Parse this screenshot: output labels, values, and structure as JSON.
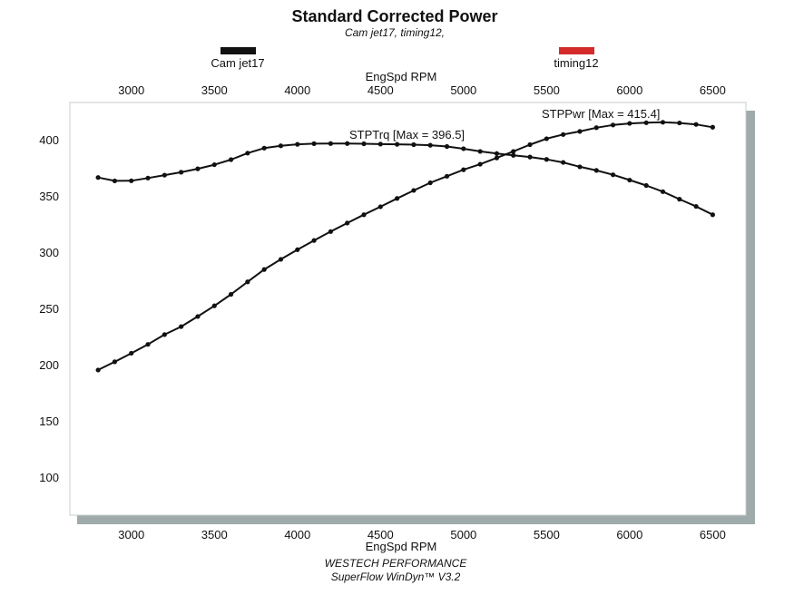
{
  "chart_data": {
    "type": "line",
    "title": "Standard Corrected Power",
    "subtitle": "Cam jet17, timing12,",
    "legend": [
      {
        "label": "Cam jet17",
        "color": "#111111"
      },
      {
        "label": "timing12",
        "color": "#d42a2a"
      }
    ],
    "xlabel": "EngSpd RPM",
    "ylabel": "",
    "xlim": [
      2630,
      6700
    ],
    "ylim": [
      66,
      433
    ],
    "x_ticks": [
      3000,
      3500,
      4000,
      4500,
      5000,
      5500,
      6000,
      6500
    ],
    "y_ticks": [
      100,
      150,
      200,
      250,
      300,
      350,
      400
    ],
    "grid": false,
    "x": [
      2800,
      2900,
      3000,
      3100,
      3200,
      3300,
      3400,
      3500,
      3600,
      3700,
      3800,
      3900,
      4000,
      4100,
      4200,
      4300,
      4400,
      4500,
      4600,
      4700,
      4800,
      4900,
      5000,
      5100,
      5200,
      5300,
      5400,
      5500,
      5600,
      5700,
      5800,
      5900,
      6000,
      6100,
      6200,
      6300,
      6400,
      6500
    ],
    "series": [
      {
        "name": "STPTrq",
        "annotation": "STPTrq [Max = 396.5]",
        "values": [
          366.3,
          363.3,
          363.4,
          365.8,
          368.4,
          371.0,
          374.0,
          377.7,
          382.2,
          388.0,
          392.4,
          394.5,
          395.8,
          396.4,
          396.5,
          396.5,
          396.3,
          396.0,
          395.8,
          395.5,
          395.0,
          393.9,
          391.9,
          389.5,
          387.6,
          386.0,
          384.5,
          382.4,
          379.7,
          375.8,
          372.6,
          368.7,
          364.0,
          359.2,
          353.7,
          347.0,
          340.6,
          333.2
        ]
      },
      {
        "name": "STPPwr",
        "annotation": "STPPwr [Max = 415.4]",
        "values": [
          195.1,
          202.4,
          210.0,
          217.9,
          226.6,
          233.7,
          242.7,
          252.2,
          262.4,
          273.5,
          284.5,
          293.5,
          302.1,
          310.3,
          318.2,
          325.8,
          333.2,
          340.3,
          347.7,
          354.8,
          361.6,
          367.4,
          373.2,
          378.1,
          383.7,
          389.5,
          395.5,
          400.8,
          404.5,
          407.3,
          410.6,
          413.0,
          414.4,
          415.0,
          415.4,
          414.8,
          413.5,
          411.0
        ]
      }
    ]
  },
  "footer": {
    "line1": "WESTECH  PERFORMANCE",
    "line2": "SuperFlow WinDyn™ V3.2"
  }
}
